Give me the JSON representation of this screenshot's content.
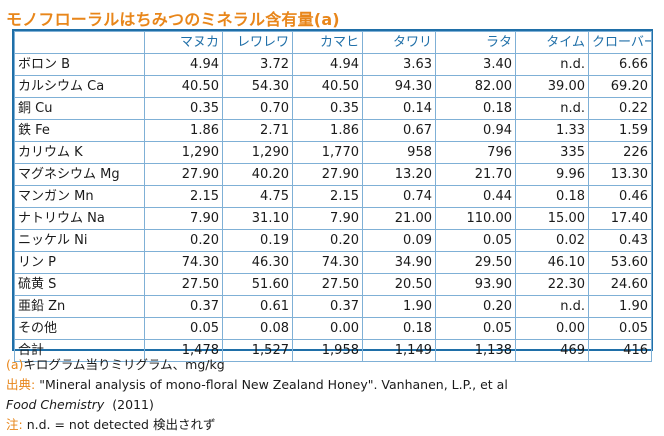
{
  "title": "モノフローラルはちみつのミネラル含有量(a)",
  "table": {
    "columns": [
      "",
      "マヌカ",
      "レワレワ",
      "カマヒ",
      "タワリ",
      "ラタ",
      "タイム",
      "クローバー"
    ],
    "rows": [
      {
        "label": "ボロン B",
        "values": [
          "4.94",
          "3.72",
          "4.94",
          "3.63",
          "3.40",
          "n.d.",
          "6.66"
        ]
      },
      {
        "label": "カルシウム Ca",
        "values": [
          "40.50",
          "54.30",
          "40.50",
          "94.30",
          "82.00",
          "39.00",
          "69.20"
        ]
      },
      {
        "label": "銅 Cu",
        "values": [
          "0.35",
          "0.70",
          "0.35",
          "0.14",
          "0.18",
          "n.d.",
          "0.22"
        ]
      },
      {
        "label": "鉄 Fe",
        "values": [
          "1.86",
          "2.71",
          "1.86",
          "0.67",
          "0.94",
          "1.33",
          "1.59"
        ]
      },
      {
        "label": "カリウム K",
        "values": [
          "1,290",
          "1,290",
          "1,770",
          "958",
          "796",
          "335",
          "226"
        ]
      },
      {
        "label": "マグネシウム Mg",
        "values": [
          "27.90",
          "40.20",
          "27.90",
          "13.20",
          "21.70",
          "9.96",
          "13.30"
        ]
      },
      {
        "label": "マンガン Mn",
        "values": [
          "2.15",
          "4.75",
          "2.15",
          "0.74",
          "0.44",
          "0.18",
          "0.46"
        ]
      },
      {
        "label": "ナトリウム Na",
        "values": [
          "7.90",
          "31.10",
          "7.90",
          "21.00",
          "110.00",
          "15.00",
          "17.40"
        ]
      },
      {
        "label": "ニッケル Ni",
        "values": [
          "0.20",
          "0.19",
          "0.20",
          "0.09",
          "0.05",
          "0.02",
          "0.43"
        ]
      },
      {
        "label": "リン P",
        "values": [
          "74.30",
          "46.30",
          "74.30",
          "34.90",
          "29.50",
          "46.10",
          "53.60"
        ]
      },
      {
        "label": "硫黄 S",
        "values": [
          "27.50",
          "51.60",
          "27.50",
          "20.50",
          "93.90",
          "22.30",
          "24.60"
        ]
      },
      {
        "label": "亜鉛 Zn",
        "values": [
          "0.37",
          "0.61",
          "0.37",
          "1.90",
          "0.20",
          "n.d.",
          "1.90"
        ]
      },
      {
        "label": "その他",
        "values": [
          "0.05",
          "0.08",
          "0.00",
          "0.18",
          "0.05",
          "0.00",
          "0.05"
        ]
      },
      {
        "label": "合計",
        "values": [
          "1,478",
          "1,527",
          "1,958",
          "1,149",
          "1,138",
          "469",
          "416"
        ]
      }
    ]
  },
  "notes": {
    "unit_prefix": "(a)",
    "unit_text": "キログラム当りミリグラム、mg/kg",
    "source_prefix": "出典:",
    "source_text": " \"Mineral analysis of mono-floral New Zealand Honey\".  Vanhanen, L.P., et al",
    "journal": "Food Chemistry",
    "year": "(2011)",
    "note_prefix": "注:",
    "note_text": " n.d. = not detected 検出されず"
  }
}
